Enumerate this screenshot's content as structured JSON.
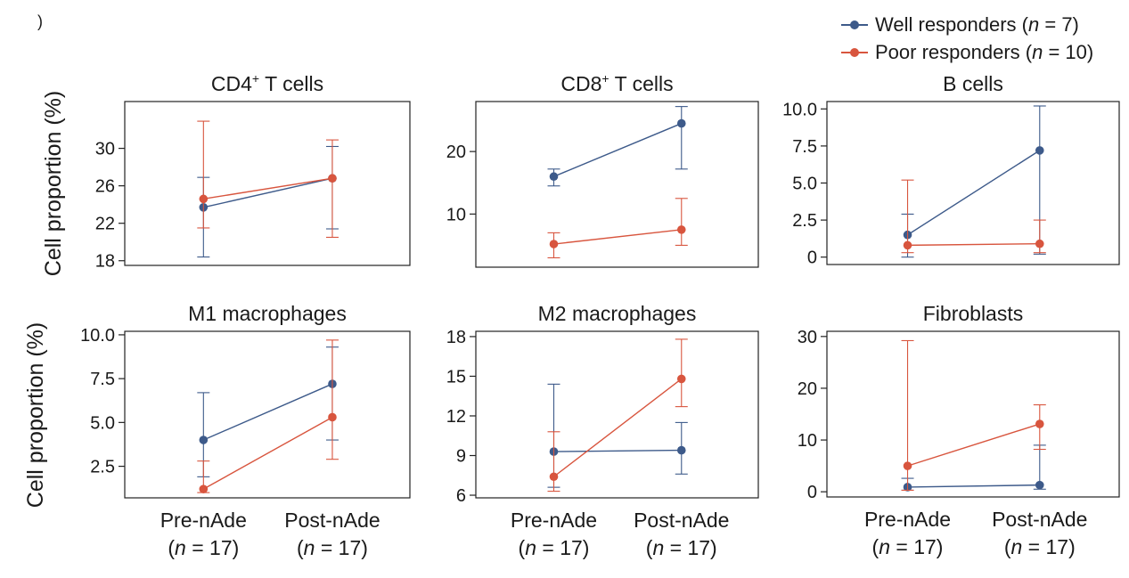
{
  "corner_mark": ")",
  "colors": {
    "well": "#3d5a8a",
    "poor": "#d8553e"
  },
  "legend": [
    {
      "key": "well",
      "prefix": "Well responders (",
      "n_symbol": "n",
      "suffix": " = 7)"
    },
    {
      "key": "poor",
      "prefix": "Poor responders (",
      "n_symbol": "n",
      "suffix": " = 10)"
    }
  ],
  "ylabel": "Cell proportion (%)",
  "xcategories": [
    {
      "label": "Pre-nAde",
      "n_prefix": "(",
      "n_symbol": "n",
      "n_suffix": " = 17)"
    },
    {
      "label": "Post-nAde",
      "n_prefix": "(",
      "n_symbol": "n",
      "n_suffix": " = 17)"
    }
  ],
  "chart_data": [
    {
      "type": "line",
      "title": "CD4",
      "title_sup": "+",
      "title_rest": " T cells",
      "ylim": [
        17.5,
        35
      ],
      "yticks": [
        "18",
        "22",
        "26",
        "30"
      ],
      "ytick_values": [
        18,
        22,
        26,
        30
      ],
      "categories": [
        "Pre-nAde",
        "Post-nAde"
      ],
      "series": [
        {
          "name": "Well responders",
          "key": "well",
          "values": [
            23.7,
            26.8
          ],
          "err_low": [
            18.4,
            21.4
          ],
          "err_high": [
            26.9,
            30.2
          ]
        },
        {
          "name": "Poor responders",
          "key": "poor",
          "values": [
            24.6,
            26.8
          ],
          "err_low": [
            21.5,
            20.5
          ],
          "err_high": [
            32.9,
            30.9
          ]
        }
      ]
    },
    {
      "type": "line",
      "title": "CD8",
      "title_sup": "+",
      "title_rest": " T cells",
      "ylim": [
        1.5,
        28
      ],
      "yticks": [
        "10",
        "20"
      ],
      "ytick_values": [
        10,
        20
      ],
      "categories": [
        "Pre-nAde",
        "Post-nAde"
      ],
      "series": [
        {
          "name": "Well responders",
          "key": "well",
          "values": [
            16.0,
            24.5
          ],
          "err_low": [
            14.5,
            17.2
          ],
          "err_high": [
            17.2,
            27.2
          ]
        },
        {
          "name": "Poor responders",
          "key": "poor",
          "values": [
            5.2,
            7.5
          ],
          "err_low": [
            3.0,
            5.0
          ],
          "err_high": [
            7.0,
            12.5
          ]
        }
      ]
    },
    {
      "type": "line",
      "title": "B cells",
      "title_sup": "",
      "title_rest": "",
      "ylim": [
        -0.5,
        10.5
      ],
      "yticks": [
        "0",
        "2.5",
        "5.0",
        "7.5",
        "10.0"
      ],
      "ytick_values": [
        0,
        2.5,
        5.0,
        7.5,
        10.0
      ],
      "categories": [
        "Pre-nAde",
        "Post-nAde"
      ],
      "series": [
        {
          "name": "Well responders",
          "key": "well",
          "values": [
            1.5,
            7.2
          ],
          "err_low": [
            0.0,
            0.2
          ],
          "err_high": [
            2.9,
            10.2
          ]
        },
        {
          "name": "Poor responders",
          "key": "poor",
          "values": [
            0.8,
            0.9
          ],
          "err_low": [
            0.3,
            0.3
          ],
          "err_high": [
            5.2,
            2.5
          ]
        }
      ]
    },
    {
      "type": "line",
      "title": "M1 macrophages",
      "title_sup": "",
      "title_rest": "",
      "ylim": [
        0.7,
        10.2
      ],
      "yticks": [
        "2.5",
        "5.0",
        "7.5",
        "10.0"
      ],
      "ytick_values": [
        2.5,
        5.0,
        7.5,
        10.0
      ],
      "categories": [
        "Pre-nAde",
        "Post-nAde"
      ],
      "series": [
        {
          "name": "Well responders",
          "key": "well",
          "values": [
            4.0,
            7.2
          ],
          "err_low": [
            1.9,
            4.0
          ],
          "err_high": [
            6.7,
            9.3
          ]
        },
        {
          "name": "Poor responders",
          "key": "poor",
          "values": [
            1.2,
            5.3
          ],
          "err_low": [
            1.0,
            2.9
          ],
          "err_high": [
            2.8,
            9.7
          ]
        }
      ]
    },
    {
      "type": "line",
      "title": "M2 macrophages",
      "title_sup": "",
      "title_rest": "",
      "ylim": [
        5.8,
        18.4
      ],
      "yticks": [
        "6",
        "9",
        "12",
        "15",
        "18"
      ],
      "ytick_values": [
        6,
        9,
        12,
        15,
        18
      ],
      "categories": [
        "Pre-nAde",
        "Post-nAde"
      ],
      "series": [
        {
          "name": "Well responders",
          "key": "well",
          "values": [
            9.3,
            9.4
          ],
          "err_low": [
            6.6,
            7.6
          ],
          "err_high": [
            14.4,
            11.5
          ]
        },
        {
          "name": "Poor responders",
          "key": "poor",
          "values": [
            7.4,
            14.8
          ],
          "err_low": [
            6.3,
            12.7
          ],
          "err_high": [
            10.8,
            17.8
          ]
        }
      ]
    },
    {
      "type": "line",
      "title": "Fibroblasts",
      "title_sup": "",
      "title_rest": "",
      "ylim": [
        -1,
        31
      ],
      "yticks": [
        "0",
        "10",
        "20",
        "30"
      ],
      "ytick_values": [
        0,
        10,
        20,
        30
      ],
      "categories": [
        "Pre-nAde",
        "Post-nAde"
      ],
      "series": [
        {
          "name": "Well responders",
          "key": "well",
          "values": [
            0.9,
            1.3
          ],
          "err_low": [
            0.3,
            0.5
          ],
          "err_high": [
            2.6,
            9.0
          ]
        },
        {
          "name": "Poor responders",
          "key": "poor",
          "values": [
            5.0,
            13.1
          ],
          "err_low": [
            0.3,
            8.2
          ],
          "err_high": [
            29.2,
            16.8
          ]
        }
      ]
    }
  ]
}
